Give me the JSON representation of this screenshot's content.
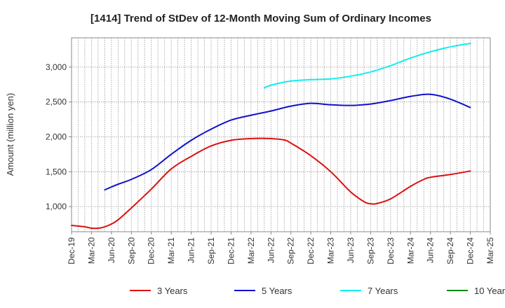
{
  "chart_data": {
    "type": "line",
    "title": "[1414]  Trend of StDev of 12-Month Moving Sum of Ordinary Incomes",
    "xlabel": "",
    "ylabel": "Amount (million yen)",
    "ylim": [
      640,
      3420
    ],
    "yticks": [
      1000,
      1500,
      2000,
      2500,
      3000
    ],
    "ytick_labels": [
      "1,000",
      "1,500",
      "2,000",
      "2,500",
      "3,000"
    ],
    "x_range": [
      0,
      63
    ],
    "xticks": [
      0,
      3,
      6,
      9,
      12,
      15,
      18,
      21,
      24,
      27,
      30,
      33,
      36,
      39,
      42,
      45,
      48,
      51,
      54,
      57,
      60,
      63
    ],
    "xtick_labels": [
      "Dec-19",
      "Mar-20",
      "Jun-20",
      "Sep-20",
      "Dec-20",
      "Mar-21",
      "Jun-21",
      "Sep-21",
      "Dec-21",
      "Mar-22",
      "Jun-22",
      "Sep-22",
      "Dec-22",
      "Mar-23",
      "Jun-23",
      "Sep-23",
      "Dec-23",
      "Mar-24",
      "Jun-24",
      "Sep-24",
      "Dec-24",
      "Mar-25"
    ],
    "grid": true,
    "legend_position": "bottom",
    "series": [
      {
        "name": "3 Years",
        "color": "#dd1111",
        "x": [
          0,
          2,
          3,
          4,
          5,
          6,
          7,
          9,
          12,
          15,
          18,
          21,
          24,
          27,
          30,
          32,
          33,
          36,
          39,
          42,
          44,
          45,
          46,
          48,
          51,
          53,
          54,
          57,
          60
        ],
        "values": [
          730,
          710,
          690,
          690,
          710,
          750,
          810,
          980,
          1250,
          1540,
          1720,
          1870,
          1950,
          1975,
          1975,
          1955,
          1910,
          1730,
          1500,
          1210,
          1070,
          1040,
          1045,
          1110,
          1290,
          1390,
          1420,
          1460,
          1510
        ]
      },
      {
        "name": "5 Years",
        "color": "#1111cc",
        "x": [
          5,
          7,
          9,
          12,
          15,
          18,
          21,
          24,
          27,
          30,
          33,
          36,
          39,
          42,
          45,
          48,
          51,
          54,
          57,
          60
        ],
        "values": [
          1240,
          1320,
          1390,
          1530,
          1750,
          1950,
          2110,
          2240,
          2310,
          2370,
          2440,
          2480,
          2460,
          2450,
          2470,
          2520,
          2580,
          2610,
          2540,
          2420
        ]
      },
      {
        "name": "7 Years",
        "color": "#11eeee",
        "x": [
          29,
          30,
          33,
          36,
          39,
          42,
          45,
          48,
          51,
          54,
          57,
          60
        ],
        "values": [
          2700,
          2740,
          2800,
          2820,
          2830,
          2870,
          2930,
          3020,
          3130,
          3220,
          3290,
          3340
        ]
      },
      {
        "name": "10 Years",
        "color": "#118811",
        "x": [],
        "values": []
      }
    ]
  }
}
